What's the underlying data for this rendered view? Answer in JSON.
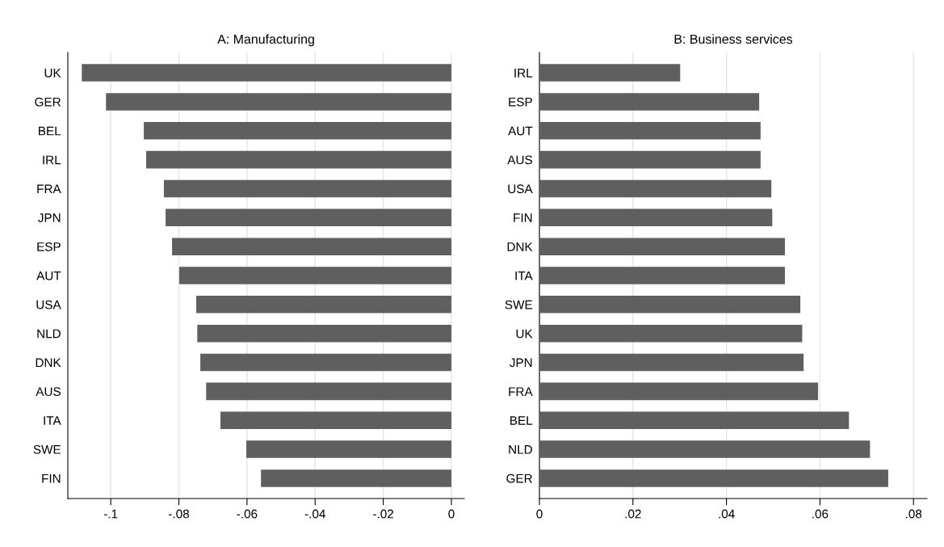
{
  "chart_data": [
    {
      "type": "bar",
      "title": "A: Manufacturing",
      "orientation": "horizontal",
      "categories": [
        "UK",
        "GER",
        "BEL",
        "IRL",
        "FRA",
        "JPN",
        "ESP",
        "AUT",
        "USA",
        "NLD",
        "DNK",
        "AUS",
        "ITA",
        "SWE",
        "FIN"
      ],
      "values": [
        -0.1085,
        -0.1014,
        -0.0903,
        -0.0896,
        -0.0844,
        -0.0839,
        -0.082,
        -0.0799,
        -0.0749,
        -0.0746,
        -0.0737,
        -0.072,
        -0.0678,
        -0.0602,
        -0.0559
      ],
      "color": "#5f5f5f",
      "xlim": [
        -0.1126,
        0.0038
      ],
      "xticks": [
        {
          "value": -0.1,
          "label": "-.1"
        },
        {
          "value": -0.08,
          "label": "-.08"
        },
        {
          "value": -0.06,
          "label": "-.06"
        },
        {
          "value": -0.04,
          "label": "-.04"
        },
        {
          "value": -0.02,
          "label": "-.02"
        },
        0
      ],
      "grid": "x"
    },
    {
      "type": "bar",
      "title": "B: Business services",
      "orientation": "horizontal",
      "categories": [
        "IRL",
        "ESP",
        "AUT",
        "AUS",
        "USA",
        "FIN",
        "DNK",
        "ITA",
        "SWE",
        "UK",
        "JPN",
        "FRA",
        "BEL",
        "NLD",
        "GER"
      ],
      "values": [
        0.0301,
        0.047,
        0.0473,
        0.0473,
        0.0496,
        0.0498,
        0.0525,
        0.0525,
        0.0558,
        0.0562,
        0.0565,
        0.0596,
        0.0662,
        0.0707,
        0.0746
      ],
      "color": "#5f5f5f",
      "xlim": [
        0,
        0.0829
      ],
      "xticks": [
        0,
        {
          "value": 0.02,
          "label": ".02"
        },
        {
          "value": 0.04,
          "label": ".04"
        },
        {
          "value": 0.06,
          "label": ".06"
        },
        {
          "value": 0.08,
          "label": ".08"
        }
      ],
      "grid": "x"
    }
  ]
}
